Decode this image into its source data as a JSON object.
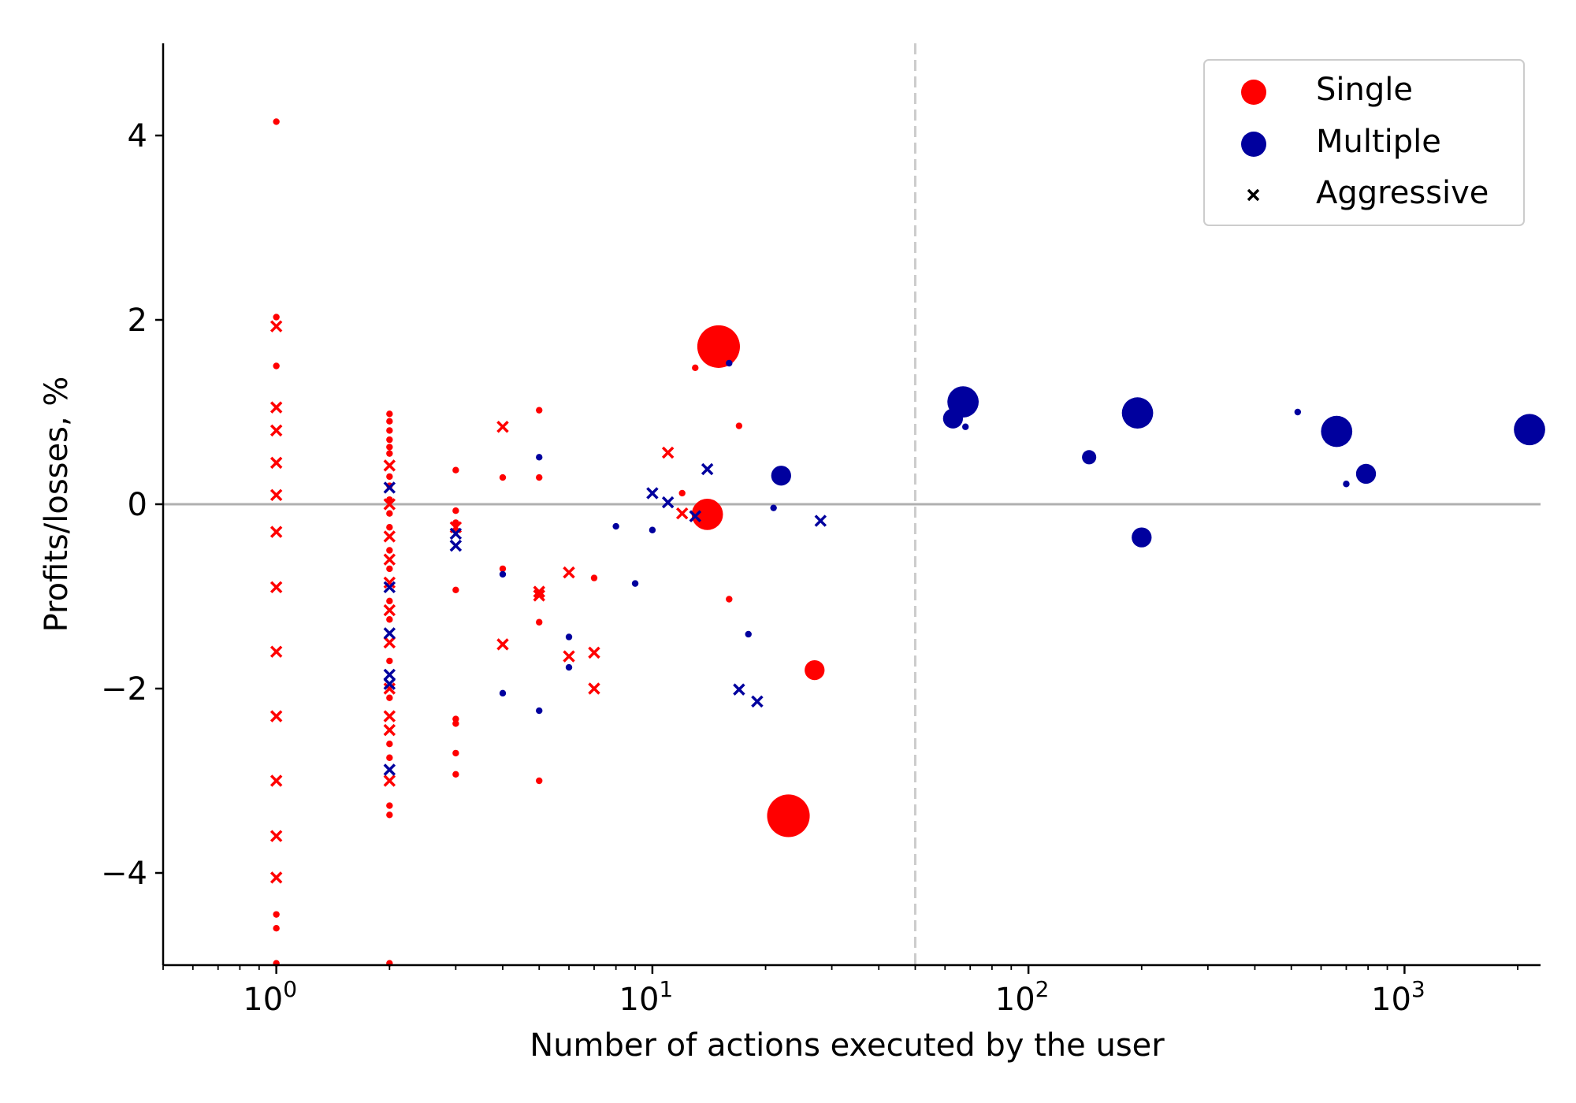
{
  "chart_data": {
    "type": "scatter",
    "title": "",
    "xlabel": "Number of actions executed by the user",
    "ylabel": "Profits/losses, %",
    "xscale": "log",
    "xlim": [
      0.5,
      2300
    ],
    "ylim": [
      -5,
      5
    ],
    "xticks": [
      {
        "value": 1,
        "base": "10",
        "exp": "0"
      },
      {
        "value": 10,
        "base": "10",
        "exp": "1"
      },
      {
        "value": 100,
        "base": "10",
        "exp": "2"
      },
      {
        "value": 1000,
        "base": "10",
        "exp": "3"
      }
    ],
    "yticks": [
      {
        "value": 4,
        "label": "4"
      },
      {
        "value": 2,
        "label": "2"
      },
      {
        "value": 0,
        "label": "0"
      },
      {
        "value": -2,
        "label": "−2"
      },
      {
        "value": -4,
        "label": "−4"
      }
    ],
    "reference_lines": {
      "horizontal_y": 0,
      "vertical_x": 50
    },
    "colors": {
      "single": "#ff0000",
      "multiple": "#00009e",
      "hline": "#b0b0b0",
      "vline": "#cccccc"
    },
    "legend": {
      "location": "top-right",
      "entries": [
        {
          "label": "Single",
          "kind": "circle",
          "color": "#ff0000"
        },
        {
          "label": "Multiple",
          "kind": "circle",
          "color": "#00009e"
        },
        {
          "label": "Aggressive",
          "kind": "cross",
          "color": "#000000"
        }
      ]
    },
    "series": [
      {
        "name": "Single",
        "color": "#ff0000",
        "points": [
          {
            "x": 1,
            "y": 4.15,
            "s": 1,
            "m": "o"
          },
          {
            "x": 1,
            "y": 2.03,
            "s": 1,
            "m": "o"
          },
          {
            "x": 1,
            "y": 1.5,
            "s": 1,
            "m": "o"
          },
          {
            "x": 1,
            "y": -4.45,
            "s": 1,
            "m": "o"
          },
          {
            "x": 1,
            "y": -4.6,
            "s": 1,
            "m": "o"
          },
          {
            "x": 1,
            "y": -4.98,
            "s": 1,
            "m": "o"
          },
          {
            "x": 1,
            "y": 1.93,
            "s": 1,
            "m": "x"
          },
          {
            "x": 1,
            "y": 1.05,
            "s": 1,
            "m": "x"
          },
          {
            "x": 1,
            "y": 0.8,
            "s": 1,
            "m": "x"
          },
          {
            "x": 1,
            "y": 0.45,
            "s": 1,
            "m": "x"
          },
          {
            "x": 1,
            "y": 0.1,
            "s": 1,
            "m": "x"
          },
          {
            "x": 1,
            "y": -0.3,
            "s": 1,
            "m": "x"
          },
          {
            "x": 1,
            "y": -0.9,
            "s": 1,
            "m": "x"
          },
          {
            "x": 1,
            "y": -1.6,
            "s": 1,
            "m": "x"
          },
          {
            "x": 1,
            "y": -2.3,
            "s": 1,
            "m": "x"
          },
          {
            "x": 1,
            "y": -3.0,
            "s": 1,
            "m": "x"
          },
          {
            "x": 1,
            "y": -3.6,
            "s": 1,
            "m": "x"
          },
          {
            "x": 1,
            "y": -4.05,
            "s": 1,
            "m": "x"
          },
          {
            "x": 2,
            "y": 0.98,
            "s": 1,
            "m": "o"
          },
          {
            "x": 2,
            "y": 0.9,
            "s": 1,
            "m": "o"
          },
          {
            "x": 2,
            "y": 0.8,
            "s": 1,
            "m": "o"
          },
          {
            "x": 2,
            "y": 0.7,
            "s": 1,
            "m": "o"
          },
          {
            "x": 2,
            "y": 0.62,
            "s": 1,
            "m": "o"
          },
          {
            "x": 2,
            "y": 0.55,
            "s": 1,
            "m": "o"
          },
          {
            "x": 2,
            "y": 0.3,
            "s": 1,
            "m": "o"
          },
          {
            "x": 2,
            "y": 0.2,
            "s": 1,
            "m": "o"
          },
          {
            "x": 2,
            "y": 0.05,
            "s": 1,
            "m": "o"
          },
          {
            "x": 2,
            "y": -0.1,
            "s": 1,
            "m": "o"
          },
          {
            "x": 2,
            "y": -0.25,
            "s": 1,
            "m": "o"
          },
          {
            "x": 2,
            "y": -0.5,
            "s": 1,
            "m": "o"
          },
          {
            "x": 2,
            "y": -0.7,
            "s": 1,
            "m": "o"
          },
          {
            "x": 2,
            "y": -1.05,
            "s": 1,
            "m": "o"
          },
          {
            "x": 2,
            "y": -1.25,
            "s": 1,
            "m": "o"
          },
          {
            "x": 2,
            "y": -1.7,
            "s": 1,
            "m": "o"
          },
          {
            "x": 2,
            "y": -2.1,
            "s": 1,
            "m": "o"
          },
          {
            "x": 2,
            "y": -2.6,
            "s": 1,
            "m": "o"
          },
          {
            "x": 2,
            "y": -2.75,
            "s": 1,
            "m": "o"
          },
          {
            "x": 2,
            "y": -3.27,
            "s": 1,
            "m": "o"
          },
          {
            "x": 2,
            "y": -3.37,
            "s": 1,
            "m": "o"
          },
          {
            "x": 2,
            "y": -4.98,
            "s": 1,
            "m": "o"
          },
          {
            "x": 2,
            "y": 0.42,
            "s": 1,
            "m": "x"
          },
          {
            "x": 2,
            "y": 0.0,
            "s": 1,
            "m": "x"
          },
          {
            "x": 2,
            "y": -0.35,
            "s": 1,
            "m": "x"
          },
          {
            "x": 2,
            "y": -0.6,
            "s": 1,
            "m": "x"
          },
          {
            "x": 2,
            "y": -0.85,
            "s": 1,
            "m": "x"
          },
          {
            "x": 2,
            "y": -1.15,
            "s": 1,
            "m": "x"
          },
          {
            "x": 2,
            "y": -1.5,
            "s": 1,
            "m": "x"
          },
          {
            "x": 2,
            "y": -2.0,
            "s": 1,
            "m": "x"
          },
          {
            "x": 2,
            "y": -2.3,
            "s": 1,
            "m": "x"
          },
          {
            "x": 2,
            "y": -2.45,
            "s": 1,
            "m": "x"
          },
          {
            "x": 2,
            "y": -3.0,
            "s": 1,
            "m": "x"
          },
          {
            "x": 3,
            "y": 0.37,
            "s": 1,
            "m": "o"
          },
          {
            "x": 3,
            "y": -0.07,
            "s": 1,
            "m": "o"
          },
          {
            "x": 3,
            "y": -0.2,
            "s": 1,
            "m": "o"
          },
          {
            "x": 3,
            "y": -0.28,
            "s": 1,
            "m": "o"
          },
          {
            "x": 3,
            "y": -0.93,
            "s": 1,
            "m": "o"
          },
          {
            "x": 3,
            "y": -2.33,
            "s": 1,
            "m": "o"
          },
          {
            "x": 3,
            "y": -2.38,
            "s": 1,
            "m": "o"
          },
          {
            "x": 3,
            "y": -2.7,
            "s": 1,
            "m": "o"
          },
          {
            "x": 3,
            "y": -2.93,
            "s": 1,
            "m": "o"
          },
          {
            "x": 3,
            "y": -0.25,
            "s": 1,
            "m": "x"
          },
          {
            "x": 4,
            "y": 0.29,
            "s": 1,
            "m": "o"
          },
          {
            "x": 4,
            "y": -0.7,
            "s": 1,
            "m": "o"
          },
          {
            "x": 4,
            "y": 0.84,
            "s": 1,
            "m": "x"
          },
          {
            "x": 4,
            "y": -1.52,
            "s": 1,
            "m": "x"
          },
          {
            "x": 5,
            "y": 1.02,
            "s": 1,
            "m": "o"
          },
          {
            "x": 5,
            "y": 0.29,
            "s": 1,
            "m": "o"
          },
          {
            "x": 5,
            "y": -1.28,
            "s": 1,
            "m": "o"
          },
          {
            "x": 5,
            "y": -3.0,
            "s": 1,
            "m": "o"
          },
          {
            "x": 5,
            "y": -0.95,
            "s": 1,
            "m": "x"
          },
          {
            "x": 5,
            "y": -0.99,
            "s": 1,
            "m": "x"
          },
          {
            "x": 6,
            "y": -0.74,
            "s": 1,
            "m": "x"
          },
          {
            "x": 6,
            "y": -1.65,
            "s": 1,
            "m": "x"
          },
          {
            "x": 7,
            "y": -0.8,
            "s": 1,
            "m": "o"
          },
          {
            "x": 7,
            "y": -1.61,
            "s": 1,
            "m": "x"
          },
          {
            "x": 7,
            "y": -2.0,
            "s": 1,
            "m": "x"
          },
          {
            "x": 11,
            "y": 0.56,
            "s": 1,
            "m": "x"
          },
          {
            "x": 12,
            "y": 0.12,
            "s": 1,
            "m": "o"
          },
          {
            "x": 12,
            "y": -0.1,
            "s": 1,
            "m": "x"
          },
          {
            "x": 13,
            "y": 1.48,
            "s": 1,
            "m": "o"
          },
          {
            "x": 14,
            "y": -0.11,
            "s": 3,
            "m": "o"
          },
          {
            "x": 15,
            "y": 1.71,
            "s": 4,
            "m": "o"
          },
          {
            "x": 16,
            "y": -1.03,
            "s": 1,
            "m": "o"
          },
          {
            "x": 17,
            "y": 0.85,
            "s": 1,
            "m": "o"
          },
          {
            "x": 23,
            "y": -3.38,
            "s": 4,
            "m": "o"
          },
          {
            "x": 27,
            "y": -1.8,
            "s": 2,
            "m": "o"
          }
        ]
      },
      {
        "name": "Multiple",
        "color": "#00009e",
        "points": [
          {
            "x": 2,
            "y": 0.18,
            "s": 1,
            "m": "x"
          },
          {
            "x": 2,
            "y": -0.9,
            "s": 1,
            "m": "x"
          },
          {
            "x": 2,
            "y": -1.4,
            "s": 1,
            "m": "x"
          },
          {
            "x": 2,
            "y": -1.85,
            "s": 1,
            "m": "x"
          },
          {
            "x": 2,
            "y": -1.95,
            "s": 1,
            "m": "x"
          },
          {
            "x": 2,
            "y": -2.88,
            "s": 1,
            "m": "x"
          },
          {
            "x": 3,
            "y": -0.32,
            "s": 1,
            "m": "x"
          },
          {
            "x": 3,
            "y": -0.45,
            "s": 1,
            "m": "x"
          },
          {
            "x": 4,
            "y": -0.76,
            "s": 1,
            "m": "o"
          },
          {
            "x": 4,
            "y": -2.05,
            "s": 1,
            "m": "o"
          },
          {
            "x": 5,
            "y": 0.51,
            "s": 1,
            "m": "o"
          },
          {
            "x": 5,
            "y": -2.24,
            "s": 1,
            "m": "o"
          },
          {
            "x": 6,
            "y": -1.44,
            "s": 1,
            "m": "o"
          },
          {
            "x": 6,
            "y": -1.77,
            "s": 1,
            "m": "o"
          },
          {
            "x": 8,
            "y": -0.24,
            "s": 1,
            "m": "o"
          },
          {
            "x": 9,
            "y": -0.86,
            "s": 1,
            "m": "o"
          },
          {
            "x": 10,
            "y": -0.28,
            "s": 1,
            "m": "o"
          },
          {
            "x": 10,
            "y": 0.12,
            "s": 1,
            "m": "x"
          },
          {
            "x": 11,
            "y": 0.02,
            "s": 1,
            "m": "x"
          },
          {
            "x": 13,
            "y": -0.13,
            "s": 1,
            "m": "x"
          },
          {
            "x": 14,
            "y": 0.38,
            "s": 1,
            "m": "x"
          },
          {
            "x": 16,
            "y": 1.53,
            "s": 1,
            "m": "o"
          },
          {
            "x": 17,
            "y": -2.01,
            "s": 1,
            "m": "x"
          },
          {
            "x": 18,
            "y": -1.41,
            "s": 1,
            "m": "o"
          },
          {
            "x": 19,
            "y": -2.14,
            "s": 1,
            "m": "x"
          },
          {
            "x": 21,
            "y": -0.04,
            "s": 1,
            "m": "o"
          },
          {
            "x": 22,
            "y": 0.31,
            "s": 2,
            "m": "o"
          },
          {
            "x": 28,
            "y": -0.18,
            "s": 1,
            "m": "x"
          },
          {
            "x": 63,
            "y": 0.93,
            "s": 2,
            "m": "o"
          },
          {
            "x": 67,
            "y": 1.11,
            "s": 3,
            "m": "o"
          },
          {
            "x": 68,
            "y": 0.84,
            "s": 1,
            "m": "o"
          },
          {
            "x": 145,
            "y": 0.51,
            "s": 1.5,
            "m": "o"
          },
          {
            "x": 195,
            "y": 0.99,
            "s": 3,
            "m": "o"
          },
          {
            "x": 200,
            "y": -0.36,
            "s": 2,
            "m": "o"
          },
          {
            "x": 520,
            "y": 1.0,
            "s": 1,
            "m": "o"
          },
          {
            "x": 660,
            "y": 0.79,
            "s": 3,
            "m": "o"
          },
          {
            "x": 700,
            "y": 0.22,
            "s": 1,
            "m": "o"
          },
          {
            "x": 790,
            "y": 0.33,
            "s": 2,
            "m": "o"
          },
          {
            "x": 2150,
            "y": 0.81,
            "s": 3,
            "m": "o"
          }
        ]
      }
    ]
  }
}
